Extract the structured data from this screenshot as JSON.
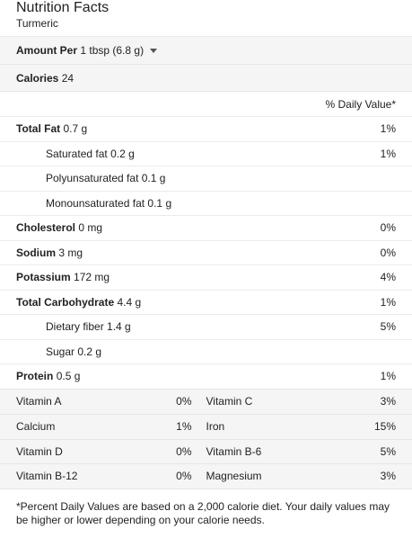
{
  "header": {
    "title": "Nutrition Facts",
    "subtitle": "Turmeric"
  },
  "amount": {
    "label": "Amount Per",
    "value": "1 tbsp (6.8 g)"
  },
  "calories": {
    "label": "Calories",
    "value": "24"
  },
  "dv_header": "% Daily Value*",
  "nutrients": [
    {
      "label": "Total Fat",
      "amount": "0.7 g",
      "dv": "1%",
      "bold": true,
      "indent": false
    },
    {
      "label": "Saturated fat",
      "amount": "0.2 g",
      "dv": "1%",
      "bold": false,
      "indent": true
    },
    {
      "label": "Polyunsaturated fat",
      "amount": "0.1 g",
      "dv": "",
      "bold": false,
      "indent": true
    },
    {
      "label": "Monounsaturated fat",
      "amount": "0.1 g",
      "dv": "",
      "bold": false,
      "indent": true
    },
    {
      "label": "Cholesterol",
      "amount": "0 mg",
      "dv": "0%",
      "bold": true,
      "indent": false
    },
    {
      "label": "Sodium",
      "amount": "3 mg",
      "dv": "0%",
      "bold": true,
      "indent": false
    },
    {
      "label": "Potassium",
      "amount": "172 mg",
      "dv": "4%",
      "bold": true,
      "indent": false
    },
    {
      "label": "Total Carbohydrate",
      "amount": "4.4 g",
      "dv": "1%",
      "bold": true,
      "indent": false
    },
    {
      "label": "Dietary fiber",
      "amount": "1.4 g",
      "dv": "5%",
      "bold": false,
      "indent": true
    },
    {
      "label": "Sugar",
      "amount": "0.2 g",
      "dv": "",
      "bold": false,
      "indent": true
    },
    {
      "label": "Protein",
      "amount": "0.5 g",
      "dv": "1%",
      "bold": true,
      "indent": false
    }
  ],
  "vitamins": [
    {
      "left": {
        "name": "Vitamin A",
        "dv": "0%"
      },
      "right": {
        "name": "Vitamin C",
        "dv": "3%"
      }
    },
    {
      "left": {
        "name": "Calcium",
        "dv": "1%"
      },
      "right": {
        "name": "Iron",
        "dv": "15%"
      }
    },
    {
      "left": {
        "name": "Vitamin D",
        "dv": "0%"
      },
      "right": {
        "name": "Vitamin B-6",
        "dv": "5%"
      }
    },
    {
      "left": {
        "name": "Vitamin B-12",
        "dv": "0%"
      },
      "right": {
        "name": "Magnesium",
        "dv": "3%"
      }
    }
  ],
  "footnote": "*Percent Daily Values are based on a 2,000 calorie diet. Your daily values may be higher or lower depending on your calorie needs."
}
